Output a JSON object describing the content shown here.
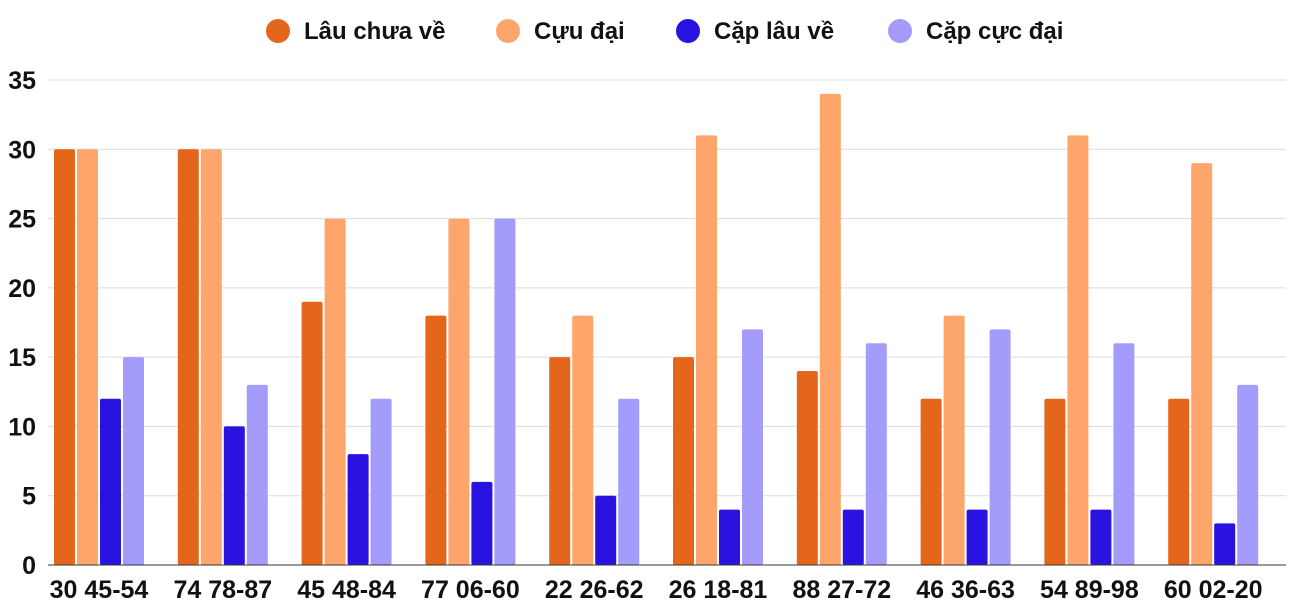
{
  "chart_data": {
    "type": "bar",
    "categories": [
      "30 45-54",
      "74 78-87",
      "45 48-84",
      "77 06-60",
      "22 26-62",
      "26 18-81",
      "88 27-72",
      "46 36-63",
      "54 89-98",
      "60 02-20"
    ],
    "series": [
      {
        "name": "Lâu chưa về",
        "color": "#e4661a",
        "values": [
          30,
          30,
          19,
          18,
          15,
          15,
          14,
          12,
          12,
          12
        ]
      },
      {
        "name": "Cựu đại",
        "color": "#fea56b",
        "values": [
          30,
          30,
          25,
          25,
          18,
          31,
          34,
          18,
          31,
          29
        ]
      },
      {
        "name": "Cặp lâu về",
        "color": "#2a12e0",
        "values": [
          12,
          10,
          8,
          6,
          5,
          4,
          4,
          4,
          4,
          3
        ]
      },
      {
        "name": "Cặp cực đại",
        "color": "#a39cfb",
        "values": [
          15,
          13,
          12,
          25,
          12,
          17,
          16,
          17,
          16,
          13
        ]
      }
    ],
    "yticks": [
      0,
      5,
      10,
      15,
      20,
      25,
      30,
      35
    ],
    "ylim": [
      0,
      35
    ],
    "grid": true,
    "legend_position": "top-center"
  }
}
